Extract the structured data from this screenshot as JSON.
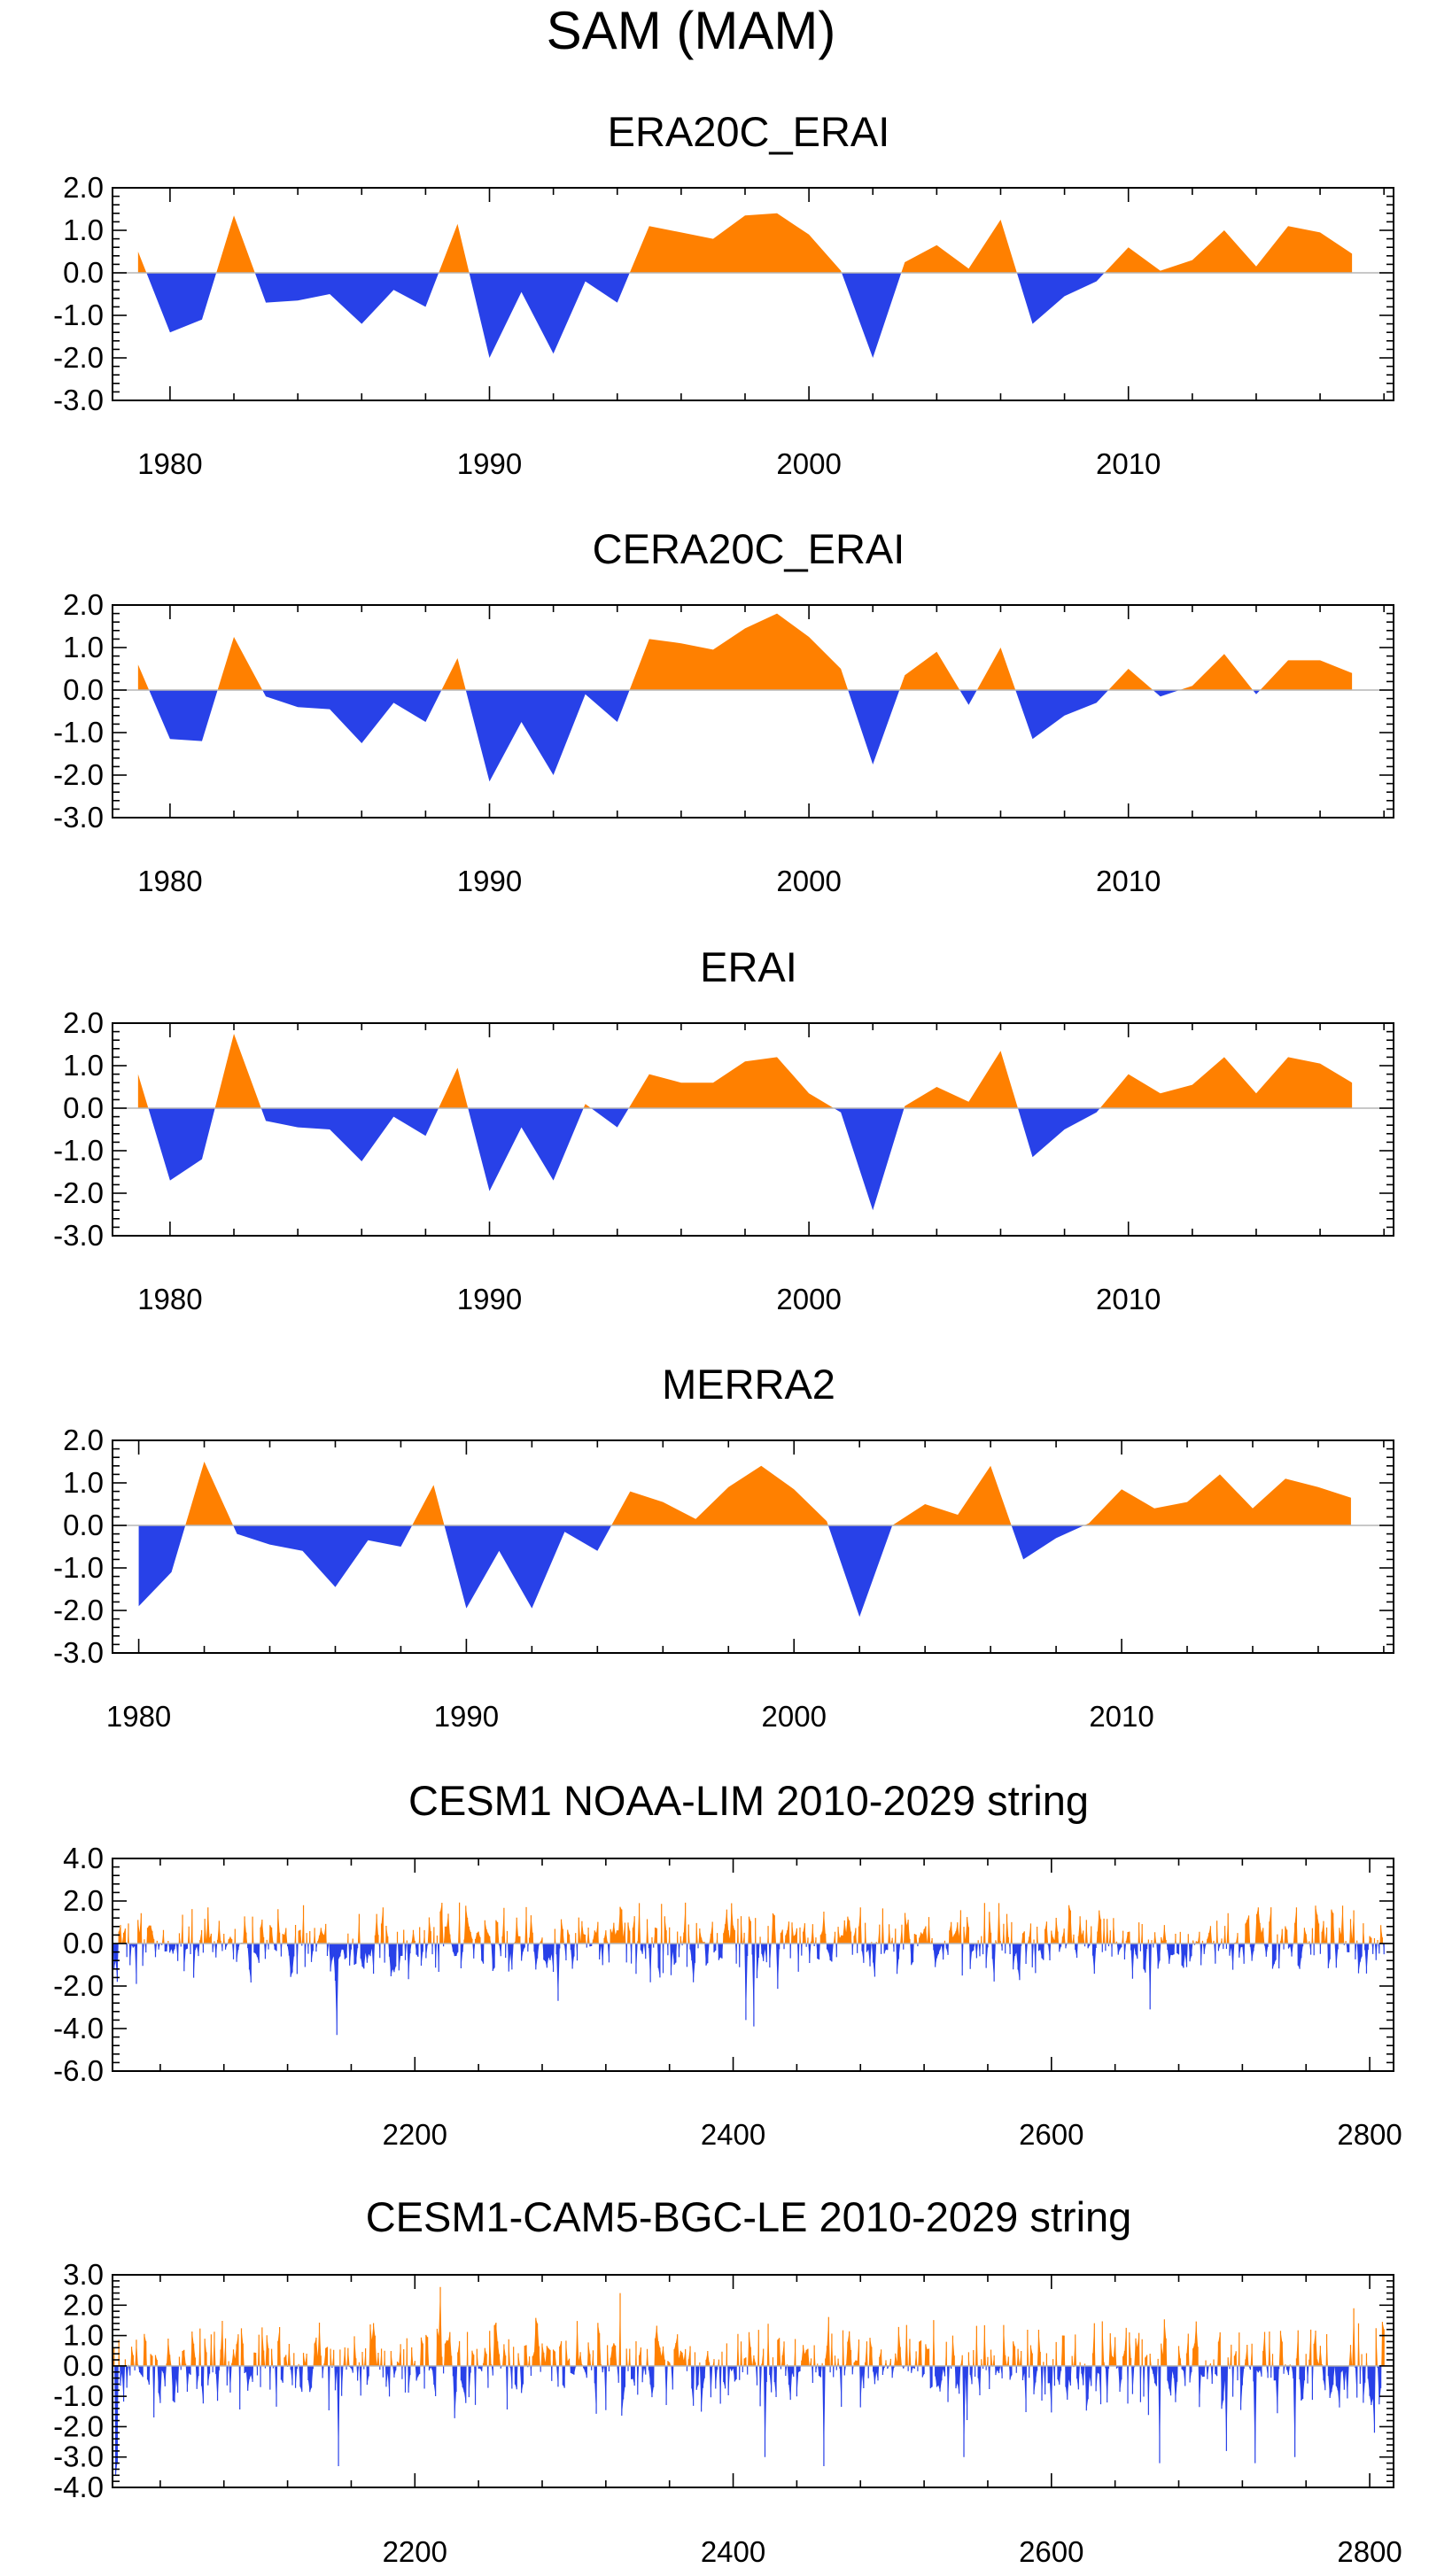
{
  "title": "SAM (MAM)",
  "colors": {
    "positive": "#FF8000",
    "negative": "#2841E8",
    "zero_line": "#b5b5b5",
    "frame": "#000000"
  },
  "chart_data": [
    {
      "type": "area",
      "title": "ERA20C_ERAI",
      "ylim": [
        -3,
        2
      ],
      "yticks": [
        2,
        1,
        0,
        -1,
        -2,
        -3
      ],
      "ytick_labels": [
        "2.0",
        "1.0",
        "0.0",
        "-1.0",
        "-2.0",
        "-3.0"
      ],
      "xlim": [
        1978.2,
        2018.3
      ],
      "xticks": [
        1980,
        1990,
        2000,
        2010
      ],
      "xtick_labels": [
        "1980",
        "1990",
        "2000",
        "2010"
      ],
      "x": [
        1979,
        1980,
        1981,
        1982,
        1983,
        1984,
        1985,
        1986,
        1987,
        1988,
        1989,
        1990,
        1991,
        1992,
        1993,
        1994,
        1995,
        1996,
        1997,
        1998,
        1999,
        2000,
        2001,
        2002,
        2003,
        2004,
        2005,
        2006,
        2007,
        2008,
        2009,
        2010,
        2011,
        2012,
        2013,
        2014,
        2015,
        2016,
        2017
      ],
      "values": [
        0.5,
        -1.4,
        -1.1,
        1.35,
        -0.7,
        -0.65,
        -0.5,
        -1.2,
        -0.4,
        -0.8,
        1.15,
        -2.0,
        -0.45,
        -1.9,
        -0.2,
        -0.7,
        1.1,
        0.95,
        0.8,
        1.35,
        1.4,
        0.9,
        0.05,
        -2.0,
        0.25,
        0.65,
        0.1,
        1.25,
        -1.2,
        -0.55,
        -0.2,
        0.6,
        0.05,
        0.3,
        1.0,
        0.15,
        1.1,
        0.95,
        0.45
      ]
    },
    {
      "type": "area",
      "title": "CERA20C_ERAI",
      "ylim": [
        -3,
        2
      ],
      "yticks": [
        2,
        1,
        0,
        -1,
        -2,
        -3
      ],
      "ytick_labels": [
        "2.0",
        "1.0",
        "0.0",
        "-1.0",
        "-2.0",
        "-3.0"
      ],
      "xlim": [
        1978.2,
        2018.3
      ],
      "xticks": [
        1980,
        1990,
        2000,
        2010
      ],
      "xtick_labels": [
        "1980",
        "1990",
        "2000",
        "2010"
      ],
      "x": [
        1979,
        1980,
        1981,
        1982,
        1983,
        1984,
        1985,
        1986,
        1987,
        1988,
        1989,
        1990,
        1991,
        1992,
        1993,
        1994,
        1995,
        1996,
        1997,
        1998,
        1999,
        2000,
        2001,
        2002,
        2003,
        2004,
        2005,
        2006,
        2007,
        2008,
        2009,
        2010,
        2011,
        2012,
        2013,
        2014,
        2015,
        2016,
        2017
      ],
      "values": [
        0.6,
        -1.15,
        -1.2,
        1.25,
        -0.15,
        -0.4,
        -0.45,
        -1.25,
        -0.3,
        -0.75,
        0.75,
        -2.15,
        -0.75,
        -2.0,
        -0.1,
        -0.75,
        1.2,
        1.1,
        0.95,
        1.45,
        1.8,
        1.25,
        0.5,
        -1.75,
        0.35,
        0.9,
        -0.35,
        1.0,
        -1.15,
        -0.6,
        -0.3,
        0.5,
        -0.15,
        0.1,
        0.85,
        -0.1,
        0.7,
        0.7,
        0.4
      ]
    },
    {
      "type": "area",
      "title": "ERAI",
      "ylim": [
        -3,
        2
      ],
      "yticks": [
        2,
        1,
        0,
        -1,
        -2,
        -3
      ],
      "ytick_labels": [
        "2.0",
        "1.0",
        "0.0",
        "-1.0",
        "-2.0",
        "-3.0"
      ],
      "xlim": [
        1978.2,
        2018.3
      ],
      "xticks": [
        1980,
        1990,
        2000,
        2010
      ],
      "xtick_labels": [
        "1980",
        "1990",
        "2000",
        "2010"
      ],
      "x": [
        1979,
        1980,
        1981,
        1982,
        1983,
        1984,
        1985,
        1986,
        1987,
        1988,
        1989,
        1990,
        1991,
        1992,
        1993,
        1994,
        1995,
        1996,
        1997,
        1998,
        1999,
        2000,
        2001,
        2002,
        2003,
        2004,
        2005,
        2006,
        2007,
        2008,
        2009,
        2010,
        2011,
        2012,
        2013,
        2014,
        2015,
        2016,
        2017
      ],
      "values": [
        0.8,
        -1.7,
        -1.2,
        1.75,
        -0.3,
        -0.45,
        -0.5,
        -1.25,
        -0.2,
        -0.65,
        0.95,
        -1.95,
        -0.45,
        -1.7,
        0.1,
        -0.45,
        0.8,
        0.6,
        0.6,
        1.1,
        1.2,
        0.35,
        -0.1,
        -2.4,
        0.05,
        0.5,
        0.15,
        1.35,
        -1.15,
        -0.5,
        -0.1,
        0.8,
        0.35,
        0.55,
        1.2,
        0.35,
        1.2,
        1.05,
        0.6
      ]
    },
    {
      "type": "area",
      "title": "MERRA2",
      "ylim": [
        -3,
        2
      ],
      "yticks": [
        2,
        1,
        0,
        -1,
        -2,
        -3
      ],
      "ytick_labels": [
        "2.0",
        "1.0",
        "0.0",
        "-1.0",
        "-2.0",
        "-3.0"
      ],
      "xlim": [
        1979.2,
        2018.3
      ],
      "xticks": [
        1980,
        1990,
        2000,
        2010
      ],
      "xtick_labels": [
        "1980",
        "1990",
        "2000",
        "2010"
      ],
      "x": [
        1980,
        1981,
        1982,
        1983,
        1984,
        1985,
        1986,
        1987,
        1988,
        1989,
        1990,
        1991,
        1992,
        1993,
        1994,
        1995,
        1996,
        1997,
        1998,
        1999,
        2000,
        2001,
        2002,
        2003,
        2004,
        2005,
        2006,
        2007,
        2008,
        2009,
        2010,
        2011,
        2012,
        2013,
        2014,
        2015,
        2016,
        2017
      ],
      "values": [
        -1.9,
        -1.1,
        1.5,
        -0.2,
        -0.45,
        -0.6,
        -1.45,
        -0.35,
        -0.5,
        0.95,
        -1.95,
        -0.6,
        -1.95,
        -0.15,
        -0.6,
        0.8,
        0.55,
        0.15,
        0.9,
        1.4,
        0.85,
        0.1,
        -2.15,
        0.0,
        0.5,
        0.25,
        1.4,
        -0.8,
        -0.3,
        0.05,
        0.85,
        0.4,
        0.55,
        1.2,
        0.4,
        1.1,
        0.9,
        0.65
      ]
    },
    {
      "type": "area",
      "title": "CESM1 NOAA-LIM 2010-2029 string",
      "ylim": [
        -6,
        4
      ],
      "yticks": [
        4,
        2,
        0,
        -2,
        -4,
        -6
      ],
      "ytick_labels": [
        "4.0",
        "2.0",
        "0.0",
        "-2.0",
        "-4.0",
        "-6.0"
      ],
      "xlim": [
        2010,
        2815
      ],
      "xticks": [
        2200,
        2400,
        2600,
        2800
      ],
      "xtick_labels": [
        "2200",
        "2400",
        "2600",
        "2800"
      ],
      "x_start": 2010,
      "n_points": 800,
      "series_style": "dense-noise",
      "amplitude": 0.8,
      "extremes": [
        [
          2013,
          -1.8
        ],
        [
          2025,
          -1.9
        ],
        [
          2070,
          1.7
        ],
        [
          2130,
          1.8
        ],
        [
          2151,
          -4.3
        ],
        [
          2180,
          1.7
        ],
        [
          2290,
          -2.7
        ],
        [
          2341,
          1.9
        ],
        [
          2408,
          -3.6
        ],
        [
          2413,
          -3.9
        ],
        [
          2480,
          1.7
        ],
        [
          2567,
          1.9
        ],
        [
          2611,
          1.8
        ],
        [
          2662,
          -3.1
        ],
        [
          2730,
          1.7
        ],
        [
          2754,
          1.7
        ],
        [
          2776,
          1.6
        ]
      ],
      "seed": 1234
    },
    {
      "type": "area",
      "title": "CESM1-CAM5-BGC-LE 2010-2029 string",
      "ylim": [
        -4,
        3
      ],
      "yticks": [
        3,
        2,
        1,
        0,
        -1,
        -2,
        -3,
        -4
      ],
      "ytick_labels": [
        "3.0",
        "2.0",
        "1.0",
        "0.0",
        "-1.0",
        "-2.0",
        "-3.0",
        "-4.0"
      ],
      "xlim": [
        2010,
        2815
      ],
      "xticks": [
        2200,
        2400,
        2600,
        2800
      ],
      "xtick_labels": [
        "2200",
        "2400",
        "2600",
        "2800"
      ],
      "x_start": 2010,
      "n_points": 800,
      "series_style": "dense-noise",
      "amplitude": 0.75,
      "extremes": [
        [
          2012,
          -3.6
        ],
        [
          2013,
          -3.2
        ],
        [
          2152,
          -3.3
        ],
        [
          2216,
          2.6
        ],
        [
          2329,
          2.4
        ],
        [
          2420,
          -3.0
        ],
        [
          2457,
          -3.3
        ],
        [
          2545,
          -3.0
        ],
        [
          2668,
          -3.2
        ],
        [
          2710,
          -2.8
        ],
        [
          2728,
          -3.2
        ],
        [
          2753,
          -3.0
        ],
        [
          2790,
          1.9
        ],
        [
          2803,
          -2.2
        ]
      ],
      "seed": 5678
    }
  ]
}
